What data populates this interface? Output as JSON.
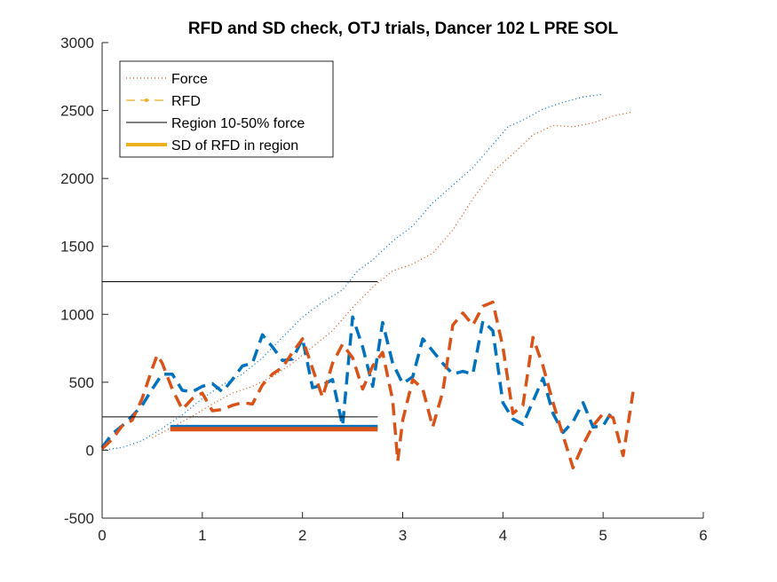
{
  "chart_data": {
    "type": "line",
    "title": "RFD and SD check, OTJ trials, Dancer 102 L PRE SOL",
    "xlabel": "",
    "ylabel": "",
    "xlim": [
      0,
      6
    ],
    "ylim": [
      -500,
      3000
    ],
    "xticks": [
      0,
      1,
      2,
      3,
      4,
      5,
      6
    ],
    "yticks": [
      -500,
      0,
      500,
      1000,
      1500,
      2000,
      2500,
      3000
    ],
    "grid": false,
    "legend_position": "top-left",
    "legend": [
      {
        "label": "Force",
        "style": "dotted",
        "color": "#D95319"
      },
      {
        "label": "RFD",
        "style": "dashed-marker",
        "color": "#EDB120"
      },
      {
        "label": "Region 10-50% force",
        "style": "solid",
        "color": "#000000"
      },
      {
        "label": "SD of RFD in region",
        "style": "thick",
        "color": "#EDB120"
      }
    ],
    "series": [
      {
        "kind": "force",
        "style": "dotted",
        "color": "#0072BD",
        "points": [
          [
            0,
            0
          ],
          [
            0.2,
            20
          ],
          [
            0.4,
            70
          ],
          [
            0.6,
            160
          ],
          [
            0.8,
            260
          ],
          [
            1.0,
            380
          ],
          [
            1.2,
            480
          ],
          [
            1.4,
            560
          ],
          [
            1.6,
            680
          ],
          [
            1.8,
            830
          ],
          [
            2.0,
            980
          ],
          [
            2.2,
            1090
          ],
          [
            2.4,
            1180
          ],
          [
            2.55,
            1320
          ],
          [
            2.7,
            1400
          ],
          [
            2.9,
            1540
          ],
          [
            3.1,
            1650
          ],
          [
            3.3,
            1820
          ],
          [
            3.5,
            1950
          ],
          [
            3.7,
            2080
          ],
          [
            3.9,
            2250
          ],
          [
            4.05,
            2380
          ],
          [
            4.2,
            2430
          ],
          [
            4.4,
            2510
          ],
          [
            4.6,
            2560
          ],
          [
            4.8,
            2600
          ],
          [
            5.0,
            2620
          ]
        ]
      },
      {
        "kind": "force",
        "style": "dotted",
        "color": "#D95319",
        "points": [
          [
            0.5,
            90
          ],
          [
            0.7,
            170
          ],
          [
            0.9,
            250
          ],
          [
            1.1,
            340
          ],
          [
            1.3,
            420
          ],
          [
            1.5,
            470
          ],
          [
            1.7,
            540
          ],
          [
            1.9,
            640
          ],
          [
            2.1,
            760
          ],
          [
            2.3,
            880
          ],
          [
            2.5,
            1050
          ],
          [
            2.7,
            1200
          ],
          [
            2.9,
            1320
          ],
          [
            3.1,
            1370
          ],
          [
            3.3,
            1450
          ],
          [
            3.5,
            1620
          ],
          [
            3.7,
            1850
          ],
          [
            3.9,
            2050
          ],
          [
            4.1,
            2180
          ],
          [
            4.3,
            2320
          ],
          [
            4.5,
            2390
          ],
          [
            4.7,
            2380
          ],
          [
            4.9,
            2410
          ],
          [
            5.1,
            2460
          ],
          [
            5.3,
            2490
          ]
        ]
      },
      {
        "kind": "rfd",
        "style": "dashed",
        "color": "#0072BD",
        "points": [
          [
            0,
            20
          ],
          [
            0.1,
            120
          ],
          [
            0.2,
            180
          ],
          [
            0.3,
            250
          ],
          [
            0.4,
            330
          ],
          [
            0.5,
            450
          ],
          [
            0.6,
            560
          ],
          [
            0.7,
            560
          ],
          [
            0.8,
            440
          ],
          [
            0.9,
            430
          ],
          [
            1.0,
            470
          ],
          [
            1.1,
            490
          ],
          [
            1.2,
            430
          ],
          [
            1.3,
            520
          ],
          [
            1.4,
            620
          ],
          [
            1.5,
            640
          ],
          [
            1.6,
            850
          ],
          [
            1.7,
            760
          ],
          [
            1.8,
            660
          ],
          [
            1.9,
            670
          ],
          [
            2.0,
            820
          ],
          [
            2.1,
            460
          ],
          [
            2.2,
            480
          ],
          [
            2.3,
            520
          ],
          [
            2.4,
            180
          ],
          [
            2.5,
            980
          ],
          [
            2.6,
            760
          ],
          [
            2.7,
            470
          ],
          [
            2.8,
            940
          ],
          [
            2.9,
            640
          ],
          [
            3.0,
            490
          ],
          [
            3.1,
            540
          ],
          [
            3.2,
            820
          ],
          [
            3.3,
            730
          ],
          [
            3.4,
            640
          ],
          [
            3.5,
            560
          ],
          [
            3.6,
            580
          ],
          [
            3.7,
            560
          ],
          [
            3.8,
            950
          ],
          [
            3.9,
            880
          ],
          [
            4.0,
            350
          ],
          [
            4.1,
            230
          ],
          [
            4.2,
            190
          ],
          [
            4.3,
            360
          ],
          [
            4.4,
            530
          ],
          [
            4.5,
            270
          ],
          [
            4.6,
            130
          ],
          [
            4.7,
            210
          ],
          [
            4.8,
            350
          ],
          [
            4.9,
            170
          ],
          [
            5.0,
            180
          ],
          [
            5.1,
            300
          ]
        ]
      },
      {
        "kind": "rfd",
        "style": "dashed",
        "color": "#D95319",
        "points": [
          [
            0,
            10
          ],
          [
            0.1,
            80
          ],
          [
            0.2,
            180
          ],
          [
            0.3,
            220
          ],
          [
            0.4,
            380
          ],
          [
            0.5,
            600
          ],
          [
            0.55,
            700
          ],
          [
            0.6,
            640
          ],
          [
            0.7,
            450
          ],
          [
            0.8,
            300
          ],
          [
            0.9,
            380
          ],
          [
            1.0,
            420
          ],
          [
            1.1,
            290
          ],
          [
            1.2,
            300
          ],
          [
            1.3,
            330
          ],
          [
            1.4,
            350
          ],
          [
            1.5,
            340
          ],
          [
            1.6,
            480
          ],
          [
            1.7,
            560
          ],
          [
            1.8,
            610
          ],
          [
            1.9,
            720
          ],
          [
            2.0,
            820
          ],
          [
            2.1,
            600
          ],
          [
            2.2,
            390
          ],
          [
            2.3,
            640
          ],
          [
            2.4,
            780
          ],
          [
            2.5,
            680
          ],
          [
            2.6,
            450
          ],
          [
            2.7,
            620
          ],
          [
            2.8,
            720
          ],
          [
            2.9,
            370
          ],
          [
            2.95,
            -80
          ],
          [
            3.0,
            220
          ],
          [
            3.1,
            520
          ],
          [
            3.2,
            450
          ],
          [
            3.3,
            170
          ],
          [
            3.4,
            430
          ],
          [
            3.5,
            920
          ],
          [
            3.6,
            1010
          ],
          [
            3.7,
            920
          ],
          [
            3.8,
            1060
          ],
          [
            3.9,
            1090
          ],
          [
            4.0,
            760
          ],
          [
            4.1,
            270
          ],
          [
            4.2,
            330
          ],
          [
            4.3,
            830
          ],
          [
            4.4,
            620
          ],
          [
            4.5,
            350
          ],
          [
            4.6,
            110
          ],
          [
            4.7,
            -130
          ],
          [
            4.8,
            40
          ],
          [
            4.9,
            180
          ],
          [
            5.0,
            270
          ],
          [
            5.1,
            240
          ],
          [
            5.2,
            -40
          ],
          [
            5.3,
            430
          ]
        ]
      }
    ],
    "regions": [
      {
        "y": 1240,
        "x0": 0,
        "x1": 2.75,
        "color": "#000000"
      },
      {
        "y": 245,
        "x0": 0,
        "x1": 2.75,
        "color": "#000000"
      }
    ],
    "sd_bars": [
      {
        "y": 170,
        "x0": 0.68,
        "x1": 2.75,
        "color": "#0072BD"
      },
      {
        "y": 155,
        "x0": 0.68,
        "x1": 2.75,
        "color": "#D95319"
      }
    ]
  }
}
